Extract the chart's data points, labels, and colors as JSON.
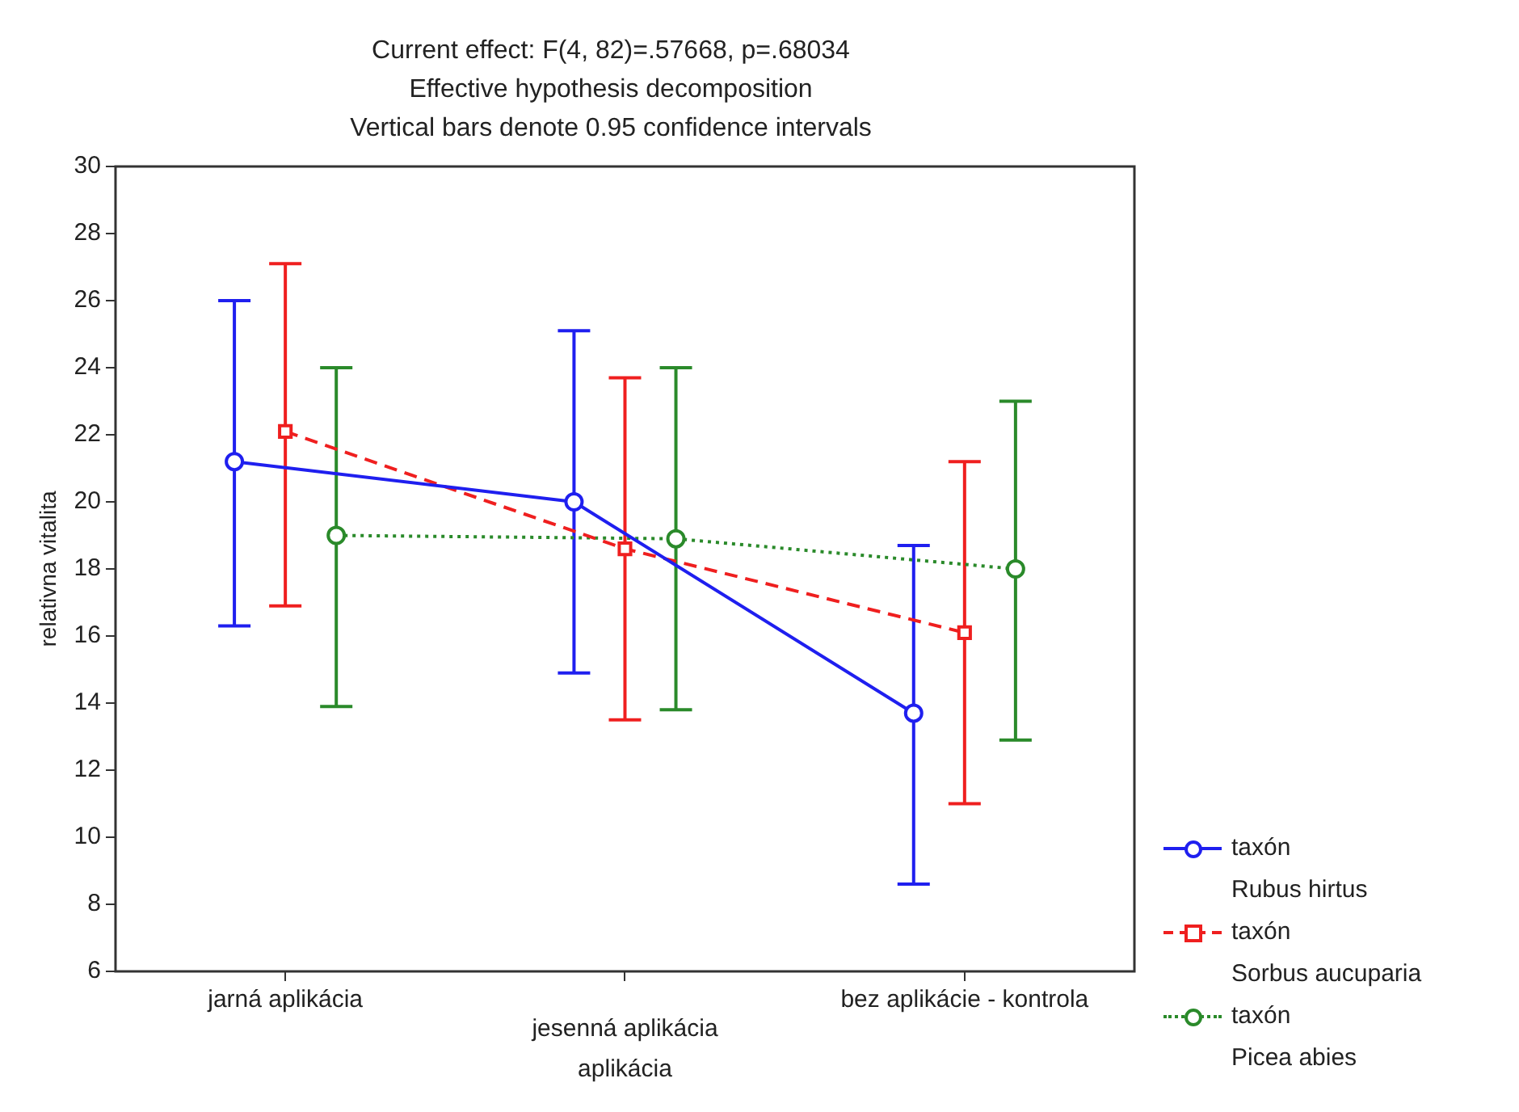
{
  "chart_data": {
    "type": "line",
    "title": "Current effect: F(4, 82)=.57668, p=.68034",
    "subtitle": "Effective hypothesis decomposition",
    "annotations": [
      "Vertical bars denote 0.95 confidence intervals"
    ],
    "xlabel": "aplikácia",
    "ylabel": "relativna vitalita",
    "categories": [
      "jarná aplikácia",
      "jesenná aplikácia",
      "bez aplikácie - kontrola"
    ],
    "ylim": [
      6,
      30
    ],
    "yticks": [
      6,
      8,
      10,
      12,
      14,
      16,
      18,
      20,
      22,
      24,
      26,
      28,
      30
    ],
    "grid": false,
    "legend": "bottom right",
    "series": [
      {
        "name": "taxón\nRubus hirtus",
        "color": "#1f1fef",
        "values": [
          21.2,
          20.0,
          13.7
        ],
        "errors": [
          [
            16.3,
            26.0
          ],
          [
            14.9,
            25.1
          ],
          [
            8.6,
            18.7
          ]
        ],
        "marker": "circle",
        "line_style": "solid"
      },
      {
        "name": "taxón\nSorbus aucuparia",
        "color": "#ef1f1f",
        "values": [
          22.1,
          18.6,
          16.1
        ],
        "errors": [
          [
            16.9,
            27.1
          ],
          [
            13.5,
            23.7
          ],
          [
            11.0,
            21.2
          ]
        ],
        "marker": "square",
        "line_style": "dashed"
      },
      {
        "name": "taxón\nPicea abies",
        "color": "#2a8a2a",
        "values": [
          19.0,
          18.9,
          18.0
        ],
        "errors": [
          [
            13.9,
            24.0
          ],
          [
            13.8,
            24.0
          ],
          [
            12.9,
            23.0
          ]
        ],
        "marker": "circle",
        "line_style": "dotted"
      }
    ]
  }
}
